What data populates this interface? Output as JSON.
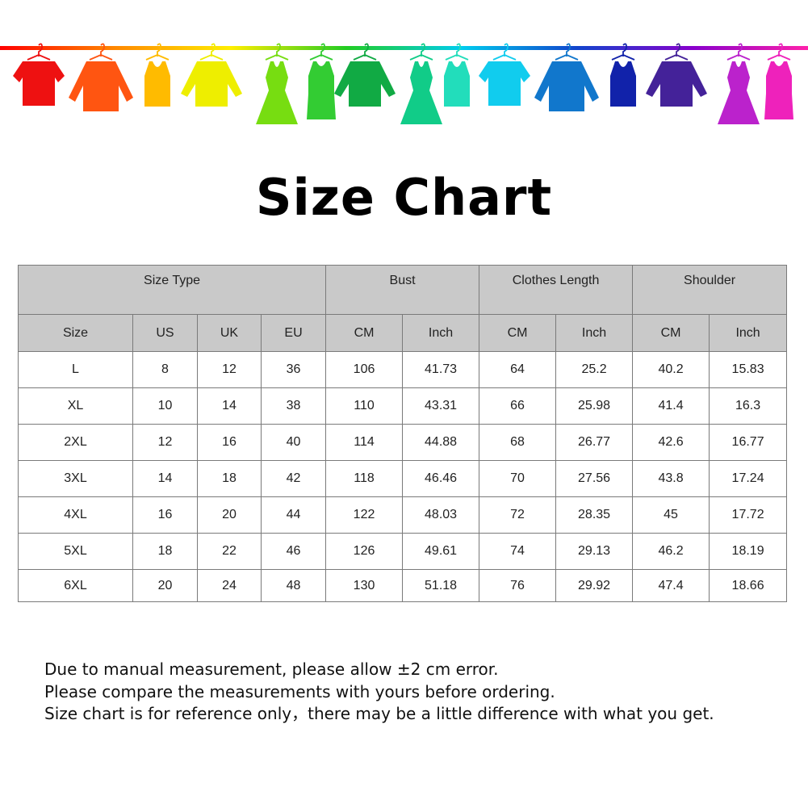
{
  "banner": {
    "rod_gradient": [
      "#ff0000",
      "#ff8800",
      "#ffee00",
      "#22cc22",
      "#00ccee",
      "#1144cc",
      "#8800cc",
      "#ff22aa"
    ],
    "items": [
      {
        "icon": "tshirt-icon",
        "color": "#ee1111"
      },
      {
        "icon": "jacket-icon",
        "color": "#ff5511"
      },
      {
        "icon": "tank-top-icon",
        "color": "#ffbb00"
      },
      {
        "icon": "sweater-icon",
        "color": "#eeee00"
      },
      {
        "icon": "dress-icon",
        "color": "#77dd11"
      },
      {
        "icon": "belted-dress-icon",
        "color": "#33cc33"
      },
      {
        "icon": "sweater-icon",
        "color": "#11aa44"
      },
      {
        "icon": "dress-icon",
        "color": "#11cc88"
      },
      {
        "icon": "tank-top-icon",
        "color": "#22ddbb"
      },
      {
        "icon": "tshirt-icon",
        "color": "#11ccee"
      },
      {
        "icon": "jacket-icon",
        "color": "#1177cc"
      },
      {
        "icon": "tank-top-icon",
        "color": "#1122aa"
      },
      {
        "icon": "sweater-icon",
        "color": "#442299"
      },
      {
        "icon": "dress-icon",
        "color": "#bb22cc"
      },
      {
        "icon": "belted-dress-icon",
        "color": "#ee22bb"
      }
    ]
  },
  "title": "Size Chart",
  "table": {
    "group_headers": [
      "Size Type",
      "Bust",
      "Clothes Length",
      "Shoulder"
    ],
    "sub_headers": [
      "Size",
      "US",
      "UK",
      "EU",
      "CM",
      "Inch",
      "CM",
      "Inch",
      "CM",
      "Inch"
    ],
    "rows": [
      [
        "L",
        "8",
        "12",
        "36",
        "106",
        "41.73",
        "64",
        "25.2",
        "40.2",
        "15.83"
      ],
      [
        "XL",
        "10",
        "14",
        "38",
        "110",
        "43.31",
        "66",
        "25.98",
        "41.4",
        "16.3"
      ],
      [
        "2XL",
        "12",
        "16",
        "40",
        "114",
        "44.88",
        "68",
        "26.77",
        "42.6",
        "16.77"
      ],
      [
        "3XL",
        "14",
        "18",
        "42",
        "118",
        "46.46",
        "70",
        "27.56",
        "43.8",
        "17.24"
      ],
      [
        "4XL",
        "16",
        "20",
        "44",
        "122",
        "48.03",
        "72",
        "28.35",
        "45",
        "17.72"
      ],
      [
        "5XL",
        "18",
        "22",
        "46",
        "126",
        "49.61",
        "74",
        "29.13",
        "46.2",
        "18.19"
      ],
      [
        "6XL",
        "20",
        "24",
        "48",
        "130",
        "51.18",
        "76",
        "29.92",
        "47.4",
        "18.66"
      ]
    ]
  },
  "notes": [
    "Due to manual measurement, please allow ±2 cm error.",
    "Please compare the measurements with yours before ordering.",
    "Size chart is for reference only，there may be a little difference with what you get."
  ]
}
